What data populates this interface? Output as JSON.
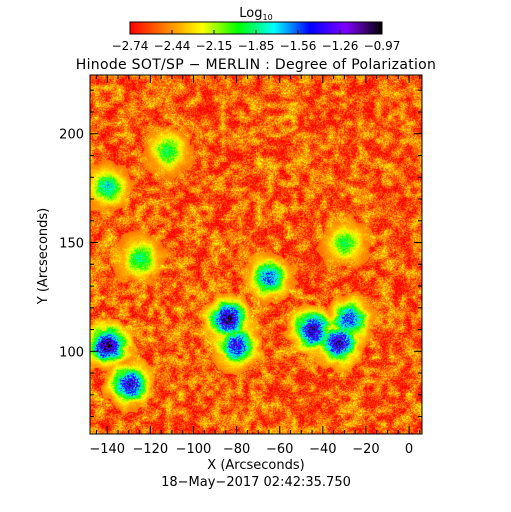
{
  "title": "Hinode SOT/SP − MERLIN : Degree of Polarization",
  "footer": "18−May−2017 02:42:35.750",
  "colorbar": {
    "label_base": "Log",
    "label_sub": "10",
    "ticks": [
      "−2.74",
      "−2.44",
      "−2.15",
      "−1.85",
      "−1.56",
      "−1.26",
      "−0.97"
    ],
    "range": [
      -2.74,
      -0.97
    ],
    "colormap": [
      "#ff0000",
      "#ff8000",
      "#ffff00",
      "#00ff00",
      "#00ffff",
      "#0000ff",
      "#8000ff",
      "#000000"
    ]
  },
  "chart_data": {
    "type": "heatmap",
    "title": "Hinode SOT/SP − MERLIN : Degree of Polarization",
    "xlabel": "X (Arcseconds)",
    "ylabel": "Y (Arcseconds)",
    "x_ticks": [
      -140,
      -120,
      -100,
      -80,
      -60,
      -40,
      -20,
      0
    ],
    "y_ticks": [
      100,
      150,
      200
    ],
    "xlim": [
      -148,
      6
    ],
    "ylim": [
      62,
      227
    ],
    "value_scale": "log10",
    "value_range": [
      -2.74,
      -0.97
    ],
    "background_level": -2.55,
    "features": [
      {
        "x": -140,
        "y": 103,
        "peak": -1.0
      },
      {
        "x": -130,
        "y": 85,
        "peak": -1.2
      },
      {
        "x": -84,
        "y": 115,
        "peak": -1.05
      },
      {
        "x": -80,
        "y": 103,
        "peak": -1.3
      },
      {
        "x": -45,
        "y": 110,
        "peak": -1.1
      },
      {
        "x": -33,
        "y": 104,
        "peak": -1.15
      },
      {
        "x": -28,
        "y": 115,
        "peak": -1.4
      },
      {
        "x": -65,
        "y": 134,
        "peak": -1.5
      },
      {
        "x": -125,
        "y": 143,
        "peak": -1.8
      },
      {
        "x": -140,
        "y": 176,
        "peak": -1.7
      },
      {
        "x": -112,
        "y": 192,
        "peak": -1.9
      },
      {
        "x": -30,
        "y": 150,
        "peak": -1.9
      }
    ]
  }
}
